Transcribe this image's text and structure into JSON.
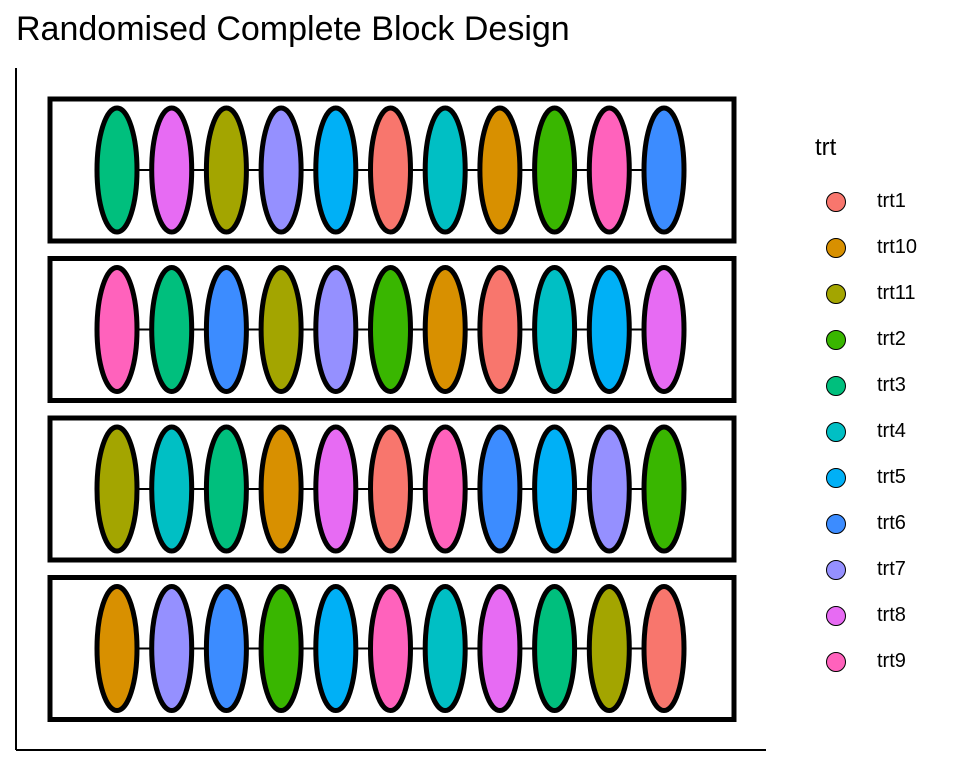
{
  "title": "Randomised Complete Block Design",
  "legend": {
    "title": "trt",
    "items": [
      {
        "label": "trt1",
        "color": "#F8766D"
      },
      {
        "label": "trt10",
        "color": "#D89000"
      },
      {
        "label": "trt11",
        "color": "#A3A500"
      },
      {
        "label": "trt2",
        "color": "#39B600"
      },
      {
        "label": "trt3",
        "color": "#00BF7D"
      },
      {
        "label": "trt4",
        "color": "#00BFC4"
      },
      {
        "label": "trt5",
        "color": "#00B0F6"
      },
      {
        "label": "trt6",
        "color": "#3C8CFF"
      },
      {
        "label": "trt7",
        "color": "#9590FF"
      },
      {
        "label": "trt8",
        "color": "#E76BF3"
      },
      {
        "label": "trt9",
        "color": "#FF62BC"
      }
    ]
  },
  "blocks": [
    [
      "trt3",
      "trt8",
      "trt11",
      "trt7",
      "trt5",
      "trt1",
      "trt4",
      "trt10",
      "trt2",
      "trt9",
      "trt6"
    ],
    [
      "trt9",
      "trt3",
      "trt6",
      "trt11",
      "trt7",
      "trt2",
      "trt10",
      "trt1",
      "trt4",
      "trt5",
      "trt8"
    ],
    [
      "trt11",
      "trt4",
      "trt3",
      "trt10",
      "trt8",
      "trt1",
      "trt9",
      "trt6",
      "trt5",
      "trt7",
      "trt2"
    ],
    [
      "trt10",
      "trt7",
      "trt6",
      "trt2",
      "trt5",
      "trt9",
      "trt4",
      "trt8",
      "trt3",
      "trt11",
      "trt1"
    ]
  ]
}
